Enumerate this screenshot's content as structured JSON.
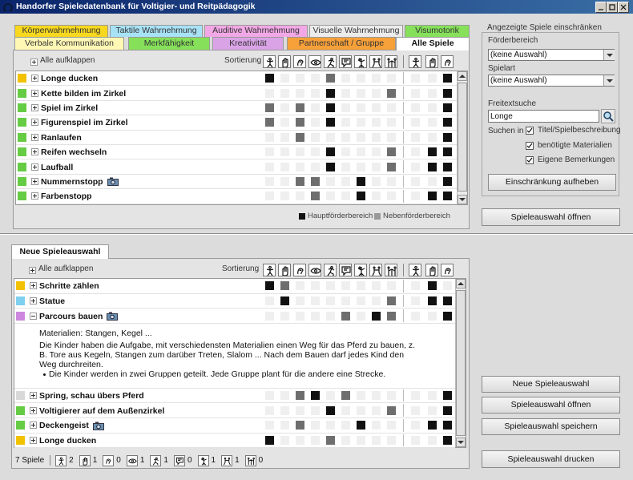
{
  "window": {
    "title": "Handorfer Spieledatenbank für Voltigier- und Reitpädagogik"
  },
  "tabs": [
    {
      "label": "Körperwahrnehmung",
      "color": "#f7d81e"
    },
    {
      "label": "Taktile Wahrnehmung",
      "color": "#a8e2f6"
    },
    {
      "label": "Auditive Wahrnehmung",
      "color": "#f2a8e6"
    },
    {
      "label": "Visuelle Wahrnehmung",
      "color": "#ececec"
    },
    {
      "label": "Visumotorik",
      "color": "#86e05a"
    },
    {
      "label": "Verbale Kommunikation",
      "color": "#fff7b4"
    },
    {
      "label": "Merkfähigkeit",
      "color": "#86e05a"
    },
    {
      "label": "Kreativität",
      "color": "#d9a3e6"
    },
    {
      "label": "Partnerschaft / Gruppe",
      "color": "#f6a03a"
    },
    {
      "label": "Alle Spiele",
      "color": "#ffffff",
      "active": true
    }
  ],
  "game_list": {
    "expand_all": "Alle aufklappen",
    "sort_label": "Sortierung",
    "rows": [
      {
        "name": "Longe ducken",
        "color": "#f2c200",
        "cells": [
          2,
          0,
          0,
          0,
          1,
          0,
          0,
          0,
          0,
          0,
          0,
          2
        ]
      },
      {
        "name": "Kette bilden im Zirkel",
        "color": "#66cc44",
        "cells": [
          0,
          0,
          0,
          0,
          2,
          0,
          0,
          0,
          1,
          0,
          0,
          2
        ]
      },
      {
        "name": "Spiel im Zirkel",
        "color": "#66cc44",
        "cells": [
          1,
          0,
          1,
          0,
          2,
          0,
          0,
          0,
          0,
          0,
          0,
          2
        ]
      },
      {
        "name": "Figurenspiel im Zirkel",
        "color": "#66cc44",
        "cells": [
          1,
          0,
          1,
          0,
          2,
          0,
          0,
          0,
          0,
          0,
          0,
          2
        ]
      },
      {
        "name": "Ranlaufen",
        "color": "#66cc44",
        "cells": [
          0,
          0,
          1,
          0,
          0,
          0,
          0,
          0,
          0,
          0,
          0,
          2
        ]
      },
      {
        "name": "Reifen wechseln",
        "color": "#66cc44",
        "cells": [
          0,
          0,
          0,
          0,
          2,
          0,
          0,
          0,
          1,
          0,
          2,
          2
        ]
      },
      {
        "name": "Laufball",
        "color": "#66cc44",
        "cells": [
          0,
          0,
          0,
          0,
          2,
          0,
          0,
          0,
          1,
          0,
          2,
          2
        ]
      },
      {
        "name": "Nummernstopp",
        "color": "#66cc44",
        "camera": true,
        "cells": [
          0,
          0,
          1,
          1,
          0,
          0,
          2,
          0,
          0,
          0,
          0,
          2
        ]
      },
      {
        "name": "Farbenstopp",
        "color": "#66cc44",
        "cells": [
          0,
          0,
          0,
          1,
          0,
          0,
          2,
          0,
          0,
          0,
          2,
          2
        ]
      }
    ],
    "legend": {
      "main": "Hauptförderbereich",
      "secondary": "Nebenförderbereich"
    }
  },
  "filter": {
    "title": "Angezeigte Spiele einschränken",
    "area_label": "Förderbereich",
    "area_value": "(keine Auswahl)",
    "kind_label": "Spielart",
    "kind_value": "(keine Auswahl)",
    "search_label": "Freitextsuche",
    "search_value": "Longe",
    "search_in_label": "Suchen in",
    "options": [
      {
        "label": "Titel/Spielbeschreibung",
        "checked": true
      },
      {
        "label": "benötigte Materialien",
        "checked": true
      },
      {
        "label": "Eigene Bemerkungen",
        "checked": true
      }
    ],
    "reset_button": "Einschränkung aufheben"
  },
  "open_button": "Spieleauswahl öffnen",
  "selection": {
    "tab": "Neue Spieleauswahl",
    "expand_all": "Alle aufklappen",
    "sort_label": "Sortierung",
    "rows": [
      {
        "name": "Schritte zählen",
        "color": "#f2c200",
        "cells": [
          2,
          1,
          0,
          0,
          0,
          0,
          0,
          0,
          0,
          0,
          2,
          0
        ]
      },
      {
        "name": "Statue",
        "color": "#7fd0ee",
        "cells": [
          0,
          2,
          0,
          0,
          0,
          0,
          0,
          0,
          1,
          0,
          2,
          2
        ]
      },
      {
        "name": "Parcours bauen",
        "color": "#cc88dd",
        "camera": true,
        "cells": [
          0,
          0,
          0,
          0,
          0,
          1,
          0,
          2,
          1,
          0,
          0,
          2
        ],
        "details": {
          "materials": "Materialien: Stangen, Kegel ...",
          "description": "Die Kinder haben die Aufgabe, mit verschiedensten Materialien einen Weg für das Pferd zu bauen, z. B. Tore aus Kegeln, Stangen zum darüber Treten, Slalom ... Nach dem Bauen darf jedes Kind den Weg durchreiten.",
          "bullets": [
            "Die Kinder werden in zwei Gruppen geteilt. Jede Gruppe plant für die andere eine Strecke."
          ]
        }
      },
      {
        "name": "Spring, schau übers Pferd",
        "color": "#d8d8d8",
        "cells": [
          0,
          0,
          1,
          2,
          0,
          1,
          0,
          0,
          0,
          0,
          0,
          2
        ]
      },
      {
        "name": "Voltigierer auf dem Außenzirkel",
        "color": "#66cc44",
        "cells": [
          0,
          0,
          0,
          0,
          2,
          0,
          0,
          0,
          1,
          0,
          0,
          2
        ]
      },
      {
        "name": "Deckengeist",
        "color": "#66cc44",
        "camera": true,
        "cells": [
          0,
          0,
          1,
          0,
          0,
          0,
          2,
          0,
          0,
          0,
          2,
          2
        ]
      },
      {
        "name": "Longe ducken",
        "color": "#f2c200",
        "cells": [
          2,
          0,
          0,
          0,
          1,
          0,
          0,
          0,
          0,
          0,
          0,
          2
        ]
      }
    ],
    "status": {
      "count": "7 Spiele",
      "main_counts": [
        2,
        1,
        0,
        1,
        1,
        0,
        1,
        1,
        0
      ]
    }
  },
  "selection_buttons": [
    "Neue Spieleauswahl",
    "Spieleauswahl öffnen",
    "Spieleauswahl speichern",
    "Spieleauswahl drucken"
  ]
}
